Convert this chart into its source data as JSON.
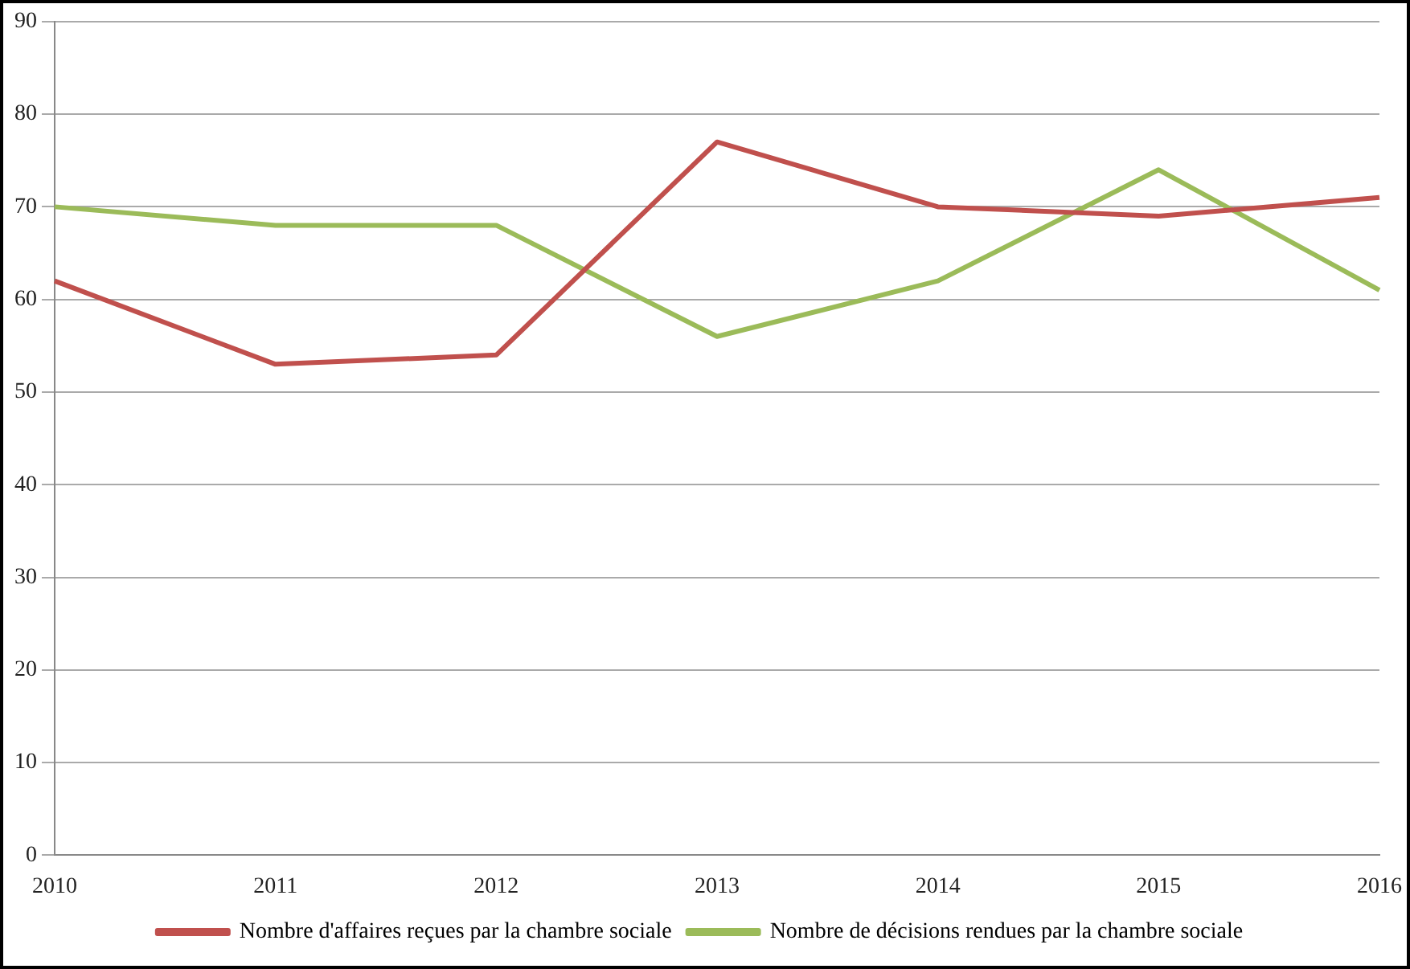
{
  "chart_data": {
    "type": "line",
    "categories": [
      "2010",
      "2011",
      "2012",
      "2013",
      "2014",
      "2015",
      "2016"
    ],
    "series": [
      {
        "name": "Nombre d'affaires reçues par la chambre sociale",
        "color": "#c0504d",
        "values": [
          62,
          53,
          54,
          77,
          70,
          69,
          71
        ]
      },
      {
        "name": "Nombre de décisions rendues par la chambre sociale",
        "color": "#9bbb59",
        "values": [
          70,
          68,
          68,
          56,
          62,
          74,
          61
        ]
      }
    ],
    "ylim": [
      0,
      90
    ],
    "yticks": [
      0,
      10,
      20,
      30,
      40,
      50,
      60,
      70,
      80,
      90
    ],
    "grid": "y",
    "legend": "bottom",
    "marker": "none",
    "line_style": "solid"
  }
}
